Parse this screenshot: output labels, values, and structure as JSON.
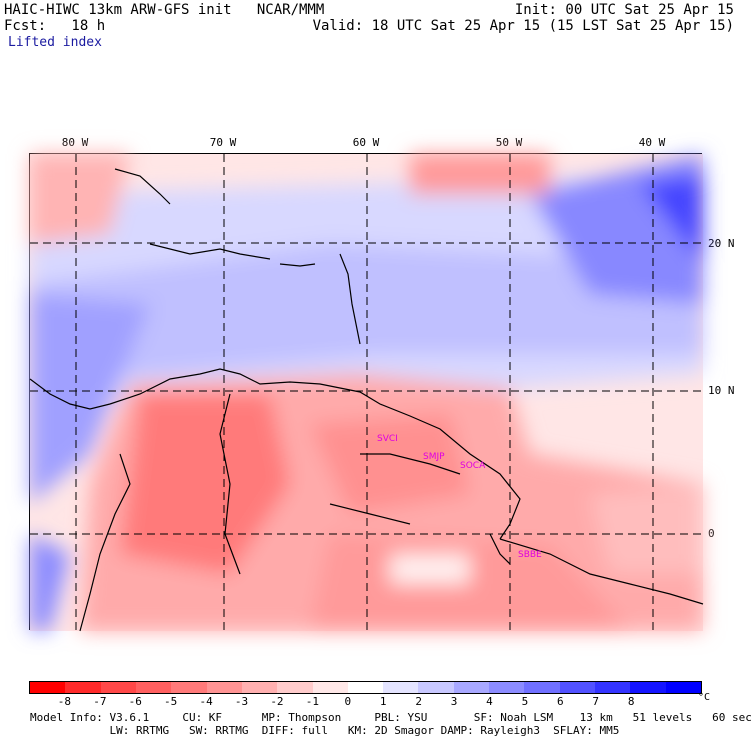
{
  "header": {
    "line1_left": "HAIC-HIWC 13km ARW-GFS init   NCAR/MMM",
    "line1_right": "Init: 00 UTC Sat 25 Apr 15",
    "line2_left": "Fcst:   18 h",
    "line2_right": "Valid: 18 UTC Sat 25 Apr 15 (15 LST Sat 25 Apr 15)",
    "field_name": "Lifted index"
  },
  "lon_labels": [
    "80 W",
    "70 W",
    "60 W",
    "50 W",
    "40 W"
  ],
  "lat_labels": [
    "20 N",
    "10 N",
    "0"
  ],
  "stations": [
    "SVCI",
    "SMJP",
    "SOCA",
    "SBBE"
  ],
  "colorbar": {
    "ticks": [
      "-8",
      "-7",
      "-6",
      "-5",
      "-4",
      "-3",
      "-2",
      "-1",
      "0",
      "1",
      "2",
      "3",
      "4",
      "5",
      "6",
      "7",
      "8"
    ],
    "unit": "°C",
    "colors": [
      "#ff0000",
      "#ff2a2a",
      "#ff4848",
      "#ff6060",
      "#ff7a7a",
      "#ff9494",
      "#ffb0b0",
      "#ffcccc",
      "#ffe8e8",
      "#ffffff",
      "#e4e4ff",
      "#c8c8ff",
      "#a8a8ff",
      "#8c8cff",
      "#7070ff",
      "#5252ff",
      "#3434ff",
      "#1414ff",
      "#0000ff"
    ]
  },
  "footer": {
    "line1": "Model Info: V3.6.1     CU: KF      MP: Thompson     PBL: YSU       SF: Noah LSM    13 km   51 levels   60 sec",
    "line2": "            LW: RRTMG   SW: RRTMG  DIFF: full   KM: 2D Smagor DAMP: Rayleigh3  SFLAY: MM5"
  }
}
